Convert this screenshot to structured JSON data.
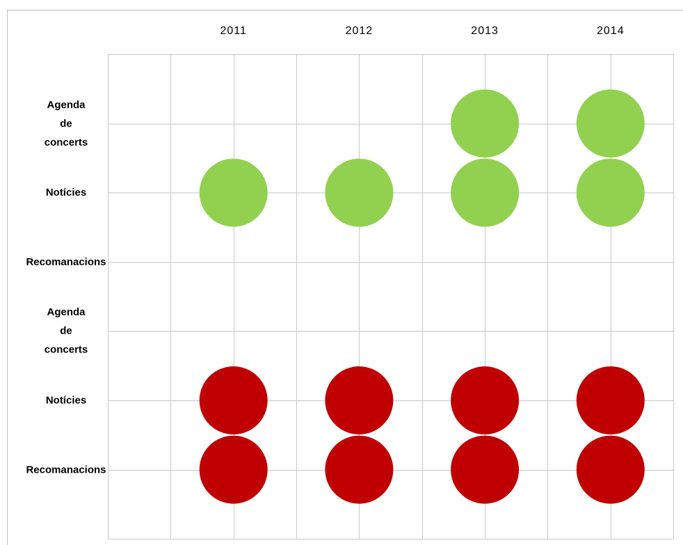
{
  "chart_data": {
    "type": "dot_matrix",
    "x_categories": [
      "2011",
      "2012",
      "2013",
      "2014"
    ],
    "y_categories": [
      "Agenda de concerts",
      "Notícies",
      "Recomanacions",
      "Agenda de concerts",
      "Notícies",
      "Recomanacions"
    ],
    "series": [
      {
        "color": "#92d050",
        "points": [
          {
            "x": 2,
            "y": 0
          },
          {
            "x": 3,
            "y": 0
          },
          {
            "x": 0,
            "y": 1
          },
          {
            "x": 1,
            "y": 1
          },
          {
            "x": 2,
            "y": 1
          },
          {
            "x": 3,
            "y": 1
          }
        ]
      },
      {
        "color": "#c00000",
        "points": [
          {
            "x": 0,
            "y": 4
          },
          {
            "x": 1,
            "y": 4
          },
          {
            "x": 2,
            "y": 4
          },
          {
            "x": 3,
            "y": 4
          },
          {
            "x": 0,
            "y": 5
          },
          {
            "x": 1,
            "y": 5
          },
          {
            "x": 2,
            "y": 5
          },
          {
            "x": 3,
            "y": 5
          }
        ]
      }
    ],
    "grid": true
  }
}
